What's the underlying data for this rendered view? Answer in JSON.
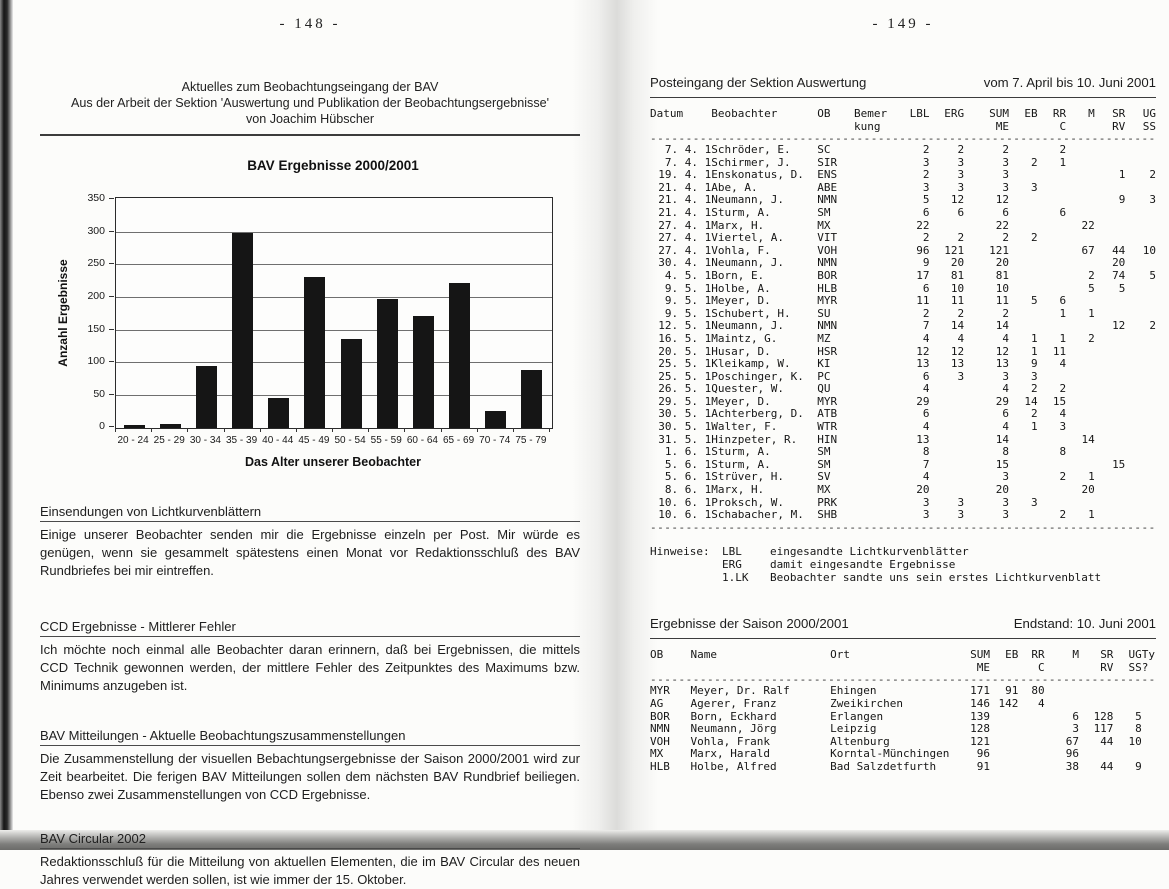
{
  "scan": {
    "left_page_number": "- 148 -",
    "right_page_number": "- 149 -",
    "separator_char": "-"
  },
  "left_page": {
    "header": {
      "line1": "Aktuelles zum Beobachtungseingang der BAV",
      "line2": "Aus der Arbeit der Sektion 'Auswertung und Publikation der Beobachtungsergebnisse'",
      "line3": "von Joachim Hübscher"
    },
    "sections": [
      {
        "heading": "Einsendungen von Lichtkurvenblättern",
        "body": "Einige unserer Beobachter senden mir die Ergebnisse einzeln per Post. Mir würde es genügen, wenn sie gesammelt spätestens einen Monat vor Redaktionsschluß des BAV Rundbriefes bei mir eintreffen."
      },
      {
        "heading": "CCD Ergebnisse - Mittlerer Fehler",
        "body": "Ich möchte noch einmal alle Beobachter daran erinnern, daß bei Ergebnissen, die mittels CCD Technik gewonnen werden, der mittlere Fehler des Zeitpunktes des Maximums bzw. Minimums anzugeben ist."
      },
      {
        "heading": "BAV Mitteilungen - Aktuelle Beobachtungszusammenstellungen",
        "body": "Die Zusammenstellung der visuellen Bebachtungsergebnisse der Saison 2000/2001 wird zur Zeit bearbeitet. Die ferigen BAV Mitteilungen sollen dem nächsten BAV Rundbrief beiliegen. Ebenso zwei Zusammenstellungen von CCD Ergebnisse."
      },
      {
        "heading": "BAV Circular 2002",
        "body": "Redaktionsschluß für die Mitteilung von aktuellen Elementen, die im BAV Circular des neuen Jahres verwendet werden sollen, ist wie immer der 15. Oktober."
      }
    ]
  },
  "chart_data": {
    "type": "bar",
    "title": "BAV Ergebnisse 2000/2001",
    "categories": [
      "20 - 24",
      "25 - 29",
      "30 - 34",
      "35 - 39",
      "40 - 44",
      "45 - 49",
      "50 - 54",
      "55 - 59",
      "60 - 64",
      "65 - 69",
      "70 - 74",
      "75 - 79"
    ],
    "values": [
      5,
      6,
      95,
      300,
      47,
      233,
      137,
      199,
      172,
      223,
      26,
      90
    ],
    "xlabel": "Das Alter unserer Beobachter",
    "ylabel": "Anzahl Ergebnisse",
    "ylim": [
      0,
      350
    ],
    "ytick_step": 50,
    "grid": true,
    "legend": false,
    "bar_color": "#151515"
  },
  "right_page": {
    "posteingang": {
      "title": "Posteingang der Sektion Auswertung",
      "date_range": "vom 7. April bis 10. Juni 2001",
      "columns": [
        [
          "Datum",
          ""
        ],
        [
          "Beobachter",
          ""
        ],
        [
          "OB",
          ""
        ],
        [
          "Bemer",
          "kung"
        ],
        [
          "LBL",
          ""
        ],
        [
          "ERG",
          ""
        ],
        [
          "SUM",
          "ME"
        ],
        [
          "EB",
          ""
        ],
        [
          "RR",
          "C"
        ],
        [
          "M",
          ""
        ],
        [
          "SR",
          "RV"
        ],
        [
          "UG",
          "SS"
        ]
      ],
      "rows": [
        [
          "7. 4. 1",
          "Schröder, E.",
          "SC",
          "",
          "2",
          "2",
          "2",
          "",
          "2",
          "",
          "",
          ""
        ],
        [
          "7. 4. 1",
          "Schirmer, J.",
          "SIR",
          "",
          "3",
          "3",
          "3",
          "2",
          "1",
          "",
          "",
          ""
        ],
        [
          "19. 4. 1",
          "Enskonatus, D.",
          "ENS",
          "",
          "2",
          "3",
          "3",
          "",
          "",
          "",
          "1",
          "2"
        ],
        [
          "21. 4. 1",
          "Abe, A.",
          "ABE",
          "",
          "3",
          "3",
          "3",
          "3",
          "",
          "",
          "",
          ""
        ],
        [
          "21. 4. 1",
          "Neumann, J.",
          "NMN",
          "",
          "5",
          "12",
          "12",
          "",
          "",
          "",
          "9",
          "3"
        ],
        [
          "21. 4. 1",
          "Sturm, A.",
          "SM",
          "",
          "6",
          "6",
          "6",
          "",
          "6",
          "",
          "",
          ""
        ],
        [
          "27. 4. 1",
          "Marx, H.",
          "MX",
          "",
          "22",
          "",
          "22",
          "",
          "",
          "22",
          "",
          ""
        ],
        [
          "27. 4. 1",
          "Viertel, A.",
          "VIT",
          "",
          "2",
          "2",
          "2",
          "2",
          "",
          "",
          "",
          ""
        ],
        [
          "27. 4. 1",
          "Vohla, F.",
          "VOH",
          "",
          "96",
          "121",
          "121",
          "",
          "",
          "67",
          "44",
          "10"
        ],
        [
          "30. 4. 1",
          "Neumann, J.",
          "NMN",
          "",
          "9",
          "20",
          "20",
          "",
          "",
          "",
          "20",
          ""
        ],
        [
          "4. 5. 1",
          "Born, E.",
          "BOR",
          "",
          "17",
          "81",
          "81",
          "",
          "",
          "2",
          "74",
          "5"
        ],
        [
          "9. 5. 1",
          "Holbe, A.",
          "HLB",
          "",
          "6",
          "10",
          "10",
          "",
          "",
          "5",
          "5",
          ""
        ],
        [
          "9. 5. 1",
          "Meyer, D.",
          "MYR",
          "",
          "11",
          "11",
          "11",
          "5",
          "6",
          "",
          "",
          ""
        ],
        [
          "9. 5. 1",
          "Schubert, H.",
          "SU",
          "",
          "2",
          "2",
          "2",
          "",
          "1",
          "1",
          "",
          ""
        ],
        [
          "12. 5. 1",
          "Neumann, J.",
          "NMN",
          "",
          "7",
          "14",
          "14",
          "",
          "",
          "",
          "12",
          "2"
        ],
        [
          "16. 5. 1",
          "Maintz, G.",
          "MZ",
          "",
          "4",
          "4",
          "4",
          "1",
          "1",
          "2",
          "",
          ""
        ],
        [
          "20. 5. 1",
          "Husar, D.",
          "HSR",
          "",
          "12",
          "12",
          "12",
          "1",
          "11",
          "",
          "",
          ""
        ],
        [
          "25. 5. 1",
          "Kleikamp, W.",
          "KI",
          "",
          "13",
          "13",
          "13",
          "9",
          "4",
          "",
          "",
          ""
        ],
        [
          "25. 5. 1",
          "Poschinger, K.",
          "PC",
          "",
          "6",
          "3",
          "3",
          "3",
          "",
          "",
          "",
          ""
        ],
        [
          "26. 5. 1",
          "Quester, W.",
          "QU",
          "",
          "4",
          "",
          "4",
          "2",
          "2",
          "",
          "",
          ""
        ],
        [
          "29. 5. 1",
          "Meyer, D.",
          "MYR",
          "",
          "29",
          "",
          "29",
          "14",
          "15",
          "",
          "",
          ""
        ],
        [
          "30. 5. 1",
          "Achterberg, D.",
          "ATB",
          "",
          "6",
          "",
          "6",
          "2",
          "4",
          "",
          "",
          ""
        ],
        [
          "30. 5. 1",
          "Walter, F.",
          "WTR",
          "",
          "4",
          "",
          "4",
          "1",
          "3",
          "",
          "",
          ""
        ],
        [
          "31. 5. 1",
          "Hinzpeter, R.",
          "HIN",
          "",
          "13",
          "",
          "14",
          "",
          "",
          "14",
          "",
          ""
        ],
        [
          "1. 6. 1",
          "Sturm, A.",
          "SM",
          "",
          "8",
          "",
          "8",
          "",
          "8",
          "",
          "",
          ""
        ],
        [
          "5. 6. 1",
          "Sturm, A.",
          "SM",
          "",
          "7",
          "",
          "15",
          "",
          "",
          "",
          "15",
          ""
        ],
        [
          "5. 6. 1",
          "Strüver, H.",
          "SV",
          "",
          "4",
          "",
          "3",
          "",
          "2",
          "1",
          "",
          ""
        ],
        [
          "8. 6. 1",
          "Marx, H.",
          "MX",
          "",
          "20",
          "",
          "20",
          "",
          "",
          "20",
          "",
          ""
        ],
        [
          "10. 6. 1",
          "Proksch, W.",
          "PRK",
          "",
          "3",
          "3",
          "3",
          "3",
          "",
          "",
          "",
          ""
        ],
        [
          "10. 6. 1",
          "Schabacher, M.",
          "SHB",
          "",
          "3",
          "3",
          "3",
          "",
          "2",
          "1",
          "",
          ""
        ]
      ],
      "hinweise_label": "Hinweise:",
      "hinweise": [
        {
          "key": "LBL",
          "text": "eingesandte Lichtkurvenblätter"
        },
        {
          "key": "ERG",
          "text": "damit eingesandte Ergebnisse"
        },
        {
          "key": "1.LK",
          "text": "Beobachter sandte uns sein erstes Lichtkurvenblatt"
        }
      ]
    },
    "ergebnisse": {
      "title": "Ergebnisse der Saison 2000/2001",
      "endstand": "Endstand: 10. Juni 2001",
      "columns": [
        [
          "OB",
          ""
        ],
        [
          "Name",
          ""
        ],
        [
          "Ort",
          ""
        ],
        [
          "SUM",
          "ME"
        ],
        [
          "EB",
          ""
        ],
        [
          "RR",
          "C"
        ],
        [
          "M",
          ""
        ],
        [
          "SR",
          "RV"
        ],
        [
          "UG",
          "SS"
        ],
        [
          "Ty",
          "?"
        ]
      ],
      "rows": [
        [
          "MYR",
          "Meyer, Dr. Ralf",
          "Ehingen",
          "171",
          "91",
          "80",
          "",
          "",
          "",
          ""
        ],
        [
          "AG",
          "Agerer, Franz",
          "Zweikirchen",
          "146",
          "142",
          "4",
          "",
          "",
          "",
          ""
        ],
        [
          "BOR",
          "Born, Eckhard",
          "Erlangen",
          "139",
          "",
          "",
          "6",
          "128",
          "5",
          ""
        ],
        [
          "NMN",
          "Neumann, Jörg",
          "Leipzig",
          "128",
          "",
          "",
          "3",
          "117",
          "8",
          ""
        ],
        [
          "VOH",
          "Vohla, Frank",
          "Altenburg",
          "121",
          "",
          "",
          "67",
          "44",
          "10",
          ""
        ],
        [
          "MX",
          "Marx, Harald",
          "Korntal-Münchingen",
          "96",
          "",
          "",
          "96",
          "",
          "",
          ""
        ],
        [
          "HLB",
          "Holbe, Alfred",
          "Bad Salzdetfurth",
          "91",
          "",
          "",
          "38",
          "44",
          "9",
          ""
        ]
      ]
    }
  }
}
